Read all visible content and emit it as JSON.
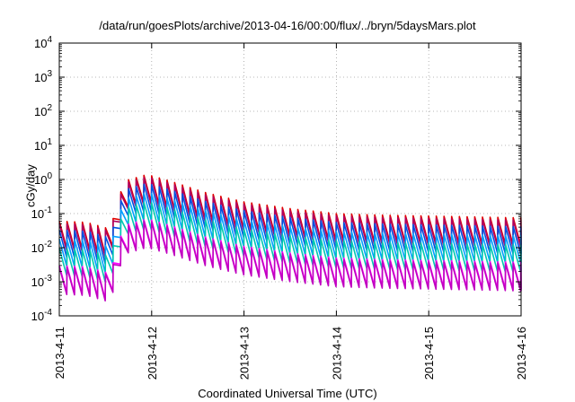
{
  "chart_data": {
    "type": "line",
    "title": "/data/run/goesPlots/archive/2013-04-16/00:00/flux/../bryn/5daysMars.plot",
    "xlabel": "Coordinated Universal Time (UTC)",
    "ylabel": "cGy/day",
    "yscale": "log",
    "ylim": [
      0.0001,
      10000
    ],
    "xlim": [
      "2013-4-11",
      "2013-4-16"
    ],
    "grid": true,
    "x_tick_labels": [
      "2013-4-11",
      "2013-4-12",
      "2013-4-13",
      "2013-4-14",
      "2013-4-15",
      "2013-4-16"
    ],
    "y_tick_labels": [
      {
        "base": "10",
        "exp": "-4"
      },
      {
        "base": "10",
        "exp": "-3"
      },
      {
        "base": "10",
        "exp": "-2"
      },
      {
        "base": "10",
        "exp": "-1"
      },
      {
        "base": "10",
        "exp": "0"
      },
      {
        "base": "10",
        "exp": "1"
      },
      {
        "base": "10",
        "exp": "2"
      },
      {
        "base": "10",
        "exp": "3"
      },
      {
        "base": "10",
        "exp": "4"
      }
    ],
    "series_colors": [
      "#e00000",
      "#b00060",
      "#0050e0",
      "#00a0ff",
      "#00c8b0",
      "#ff00ff",
      "#c000c0"
    ],
    "envelope_x": [
      0.0,
      0.3,
      0.55,
      0.7,
      0.95,
      1.2,
      1.6,
      2.0,
      2.5,
      3.0,
      3.5,
      4.0,
      4.5,
      5.0
    ],
    "peak_value": [
      0.06,
      0.055,
      0.035,
      0.9,
      1.4,
      0.9,
      0.4,
      0.22,
      0.14,
      0.1,
      0.09,
      0.085,
      0.08,
      0.075
    ],
    "series_factor": [
      1.0,
      0.85,
      0.55,
      0.3,
      0.16,
      0.05,
      0.045
    ],
    "trough_ratio": 0.16,
    "cycle_days": 0.0833
  }
}
